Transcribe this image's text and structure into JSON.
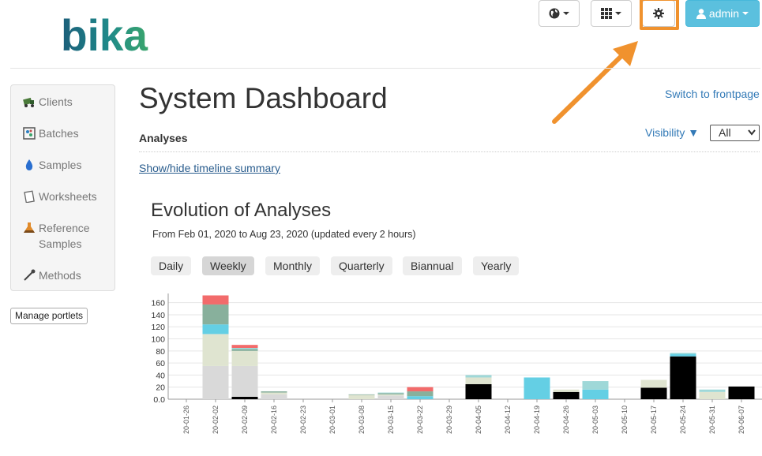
{
  "header": {
    "logo_text": "bika",
    "language_icon": "globe-icon",
    "apps_icon": "grid-icon",
    "settings_icon": "gear-icon",
    "user_label": "admin",
    "user_icon": "user-icon",
    "highlight_color": "#f0922e"
  },
  "sidebar": {
    "items": [
      {
        "label": "Clients",
        "icon": "truck-icon"
      },
      {
        "label": "Batches",
        "icon": "batch-icon"
      },
      {
        "label": "Samples",
        "icon": "drop-icon"
      },
      {
        "label": "Worksheets",
        "icon": "worksheet-icon"
      },
      {
        "label": "Reference Samples",
        "icon": "flask-icon"
      },
      {
        "label": "Methods",
        "icon": "pipette-icon"
      }
    ],
    "manage_label": "Manage portlets"
  },
  "main": {
    "title": "System Dashboard",
    "switch_link": "Switch to frontpage",
    "section_title": "Analyses",
    "visibility_label": "Visibility ▼",
    "visibility_value": "All",
    "toggle_link": "Show/hide timeline summary",
    "chart_title": "Evolution of Analyses",
    "range_text": "From  Feb 01, 2020  to  Aug 23, 2020 (updated every 2 hours)",
    "periods": [
      "Daily",
      "Weekly",
      "Monthly",
      "Quarterly",
      "Biannual",
      "Yearly"
    ],
    "active_period": "Weekly"
  },
  "chart_data": {
    "type": "bar",
    "stacked": true,
    "ylim": [
      0,
      170
    ],
    "yticks": [
      "0.0",
      "20",
      "40",
      "60",
      "80",
      "100",
      "120",
      "140",
      "160"
    ],
    "categories": [
      "20-01-26",
      "20-02-02",
      "20-02-09",
      "20-02-16",
      "20-02-23",
      "20-03-01",
      "20-03-08",
      "20-03-15",
      "20-03-22",
      "20-03-29",
      "20-04-05",
      "20-04-12",
      "20-04-19",
      "20-04-26",
      "20-05-03",
      "20-05-10",
      "20-05-17",
      "20-05-24",
      "20-05-31",
      "20-06-07"
    ],
    "series": [
      {
        "color": "#000000",
        "values": [
          0,
          0,
          4,
          0,
          0,
          0,
          0,
          0,
          0,
          0,
          25,
          0,
          0,
          12,
          0,
          0,
          19,
          71,
          0,
          21
        ]
      },
      {
        "color": "#d9d9d9",
        "values": [
          0,
          55,
          51,
          8,
          0,
          0,
          0,
          6,
          0,
          0,
          0,
          0,
          0,
          0,
          0,
          0,
          0,
          0,
          0,
          0
        ]
      },
      {
        "color": "#dfe4d0",
        "values": [
          0,
          53,
          25,
          3,
          0,
          0,
          7,
          2,
          0,
          0,
          11,
          0,
          0,
          4,
          0,
          0,
          13,
          0,
          12,
          0
        ]
      },
      {
        "color": "#64cfe4",
        "values": [
          0,
          16,
          0,
          0,
          0,
          0,
          0,
          0,
          5,
          0,
          0,
          0,
          36,
          0,
          16,
          0,
          0,
          4,
          0,
          0
        ]
      },
      {
        "color": "#88b09c",
        "values": [
          0,
          33,
          3,
          2,
          0,
          0,
          1,
          2,
          8,
          0,
          0,
          0,
          0,
          0,
          0,
          0,
          0,
          0,
          0,
          0
        ]
      },
      {
        "color": "#9fd8d8",
        "values": [
          0,
          0,
          2,
          0,
          0,
          0,
          0,
          1,
          0,
          0,
          4,
          0,
          0,
          0,
          14,
          0,
          0,
          2,
          4,
          0
        ]
      },
      {
        "color": "#f26b6b",
        "values": [
          0,
          15,
          5,
          0,
          0,
          0,
          0,
          0,
          7,
          0,
          0,
          0,
          0,
          0,
          0,
          0,
          0,
          0,
          0,
          0
        ]
      }
    ]
  }
}
